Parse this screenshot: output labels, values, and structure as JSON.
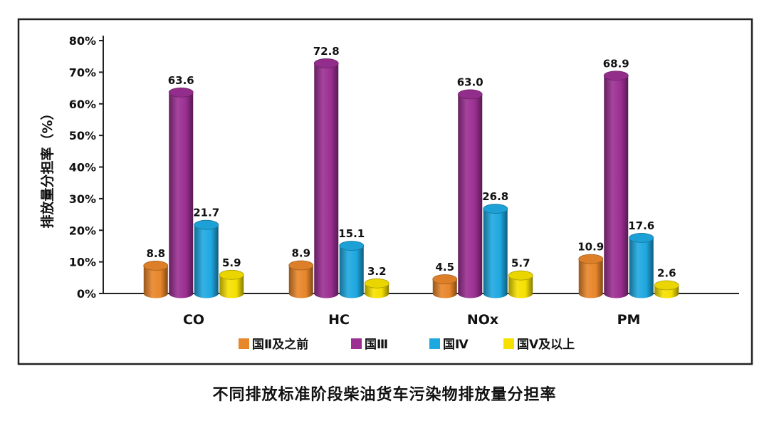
{
  "caption": "不同排放标准阶段柴油货车污染物排放量分担率",
  "chart_data": {
    "type": "bar",
    "ylabel": "排放量分担率（%）",
    "ylim": [
      0,
      80
    ],
    "yticks": [
      "0%",
      "10%",
      "20%",
      "30%",
      "40%",
      "50%",
      "60%",
      "70%",
      "80%"
    ],
    "categories": [
      "CO",
      "HC",
      "NOx",
      "PM"
    ],
    "legend_position": "bottom",
    "series": [
      {
        "name": "国Ⅱ及之前",
        "color": "#E8862A",
        "values": [
          8.8,
          8.9,
          4.5,
          10.9
        ]
      },
      {
        "name": "国Ⅲ",
        "color": "#9B2F92",
        "values": [
          63.6,
          72.8,
          63.0,
          68.9
        ]
      },
      {
        "name": "国Ⅳ",
        "color": "#1EA8E0",
        "values": [
          21.7,
          15.1,
          26.8,
          17.6
        ]
      },
      {
        "name": "国Ⅴ及以上",
        "color": "#F6E000",
        "values": [
          5.9,
          3.2,
          5.7,
          2.6
        ]
      }
    ],
    "data_labels": [
      [
        "8.8",
        "8.9",
        "4.5",
        "10.9"
      ],
      [
        "63.6",
        "72.8",
        "63.0",
        "68.9"
      ],
      [
        "21.7",
        "15.1",
        "26.8",
        "17.6"
      ],
      [
        "5.9",
        "3.2",
        "5.7",
        "2.6"
      ]
    ]
  }
}
